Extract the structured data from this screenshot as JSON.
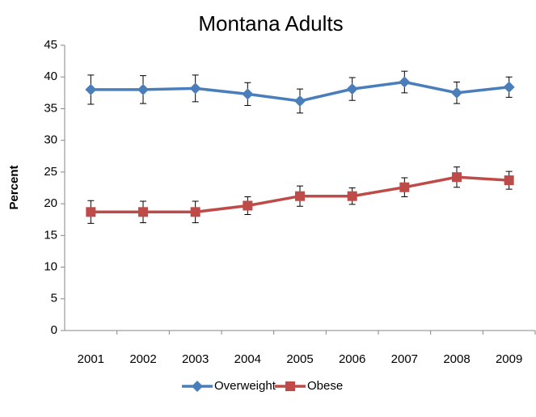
{
  "chart_data": {
    "type": "line",
    "title": "Montana Adults",
    "y_label": "Percent",
    "categories": [
      "2001",
      "2002",
      "2003",
      "2004",
      "2005",
      "2006",
      "2007",
      "2008",
      "2009"
    ],
    "series": [
      {
        "name": "Overweight",
        "color": "#4a7ebb",
        "marker": "diamond",
        "values": [
          38.0,
          38.0,
          38.2,
          37.3,
          36.2,
          38.1,
          39.2,
          37.5,
          38.4
        ],
        "errors": [
          2.3,
          2.2,
          2.1,
          1.8,
          1.9,
          1.8,
          1.7,
          1.7,
          1.6
        ]
      },
      {
        "name": "Obese",
        "color": "#be4b48",
        "marker": "square",
        "values": [
          18.7,
          18.7,
          18.7,
          19.7,
          21.2,
          21.2,
          22.6,
          24.2,
          23.7
        ],
        "errors": [
          1.8,
          1.7,
          1.7,
          1.4,
          1.6,
          1.3,
          1.5,
          1.6,
          1.4
        ]
      }
    ],
    "ylim": [
      0,
      45
    ],
    "yticks": [
      0,
      5,
      10,
      15,
      20,
      25,
      30,
      35,
      40,
      45
    ],
    "grid": false,
    "legend": "bottom"
  }
}
